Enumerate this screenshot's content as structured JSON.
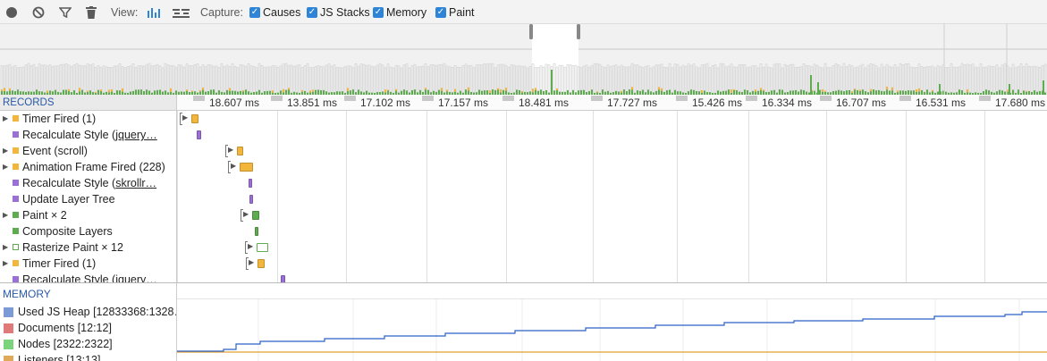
{
  "toolbar": {
    "view_label": "View:",
    "capture_label": "Capture:",
    "capture_options": [
      "Causes",
      "JS Stacks",
      "Memory",
      "Paint"
    ],
    "icons": [
      "record-icon",
      "clear-icon",
      "filter-icon",
      "trash-icon",
      "bars-view-icon",
      "flame-view-icon"
    ]
  },
  "records_header": "RECORDS",
  "ticks": [
    "18.607 ms",
    "13.851 ms",
    "17.102 ms",
    "17.157 ms",
    "18.481 ms",
    "17.727 ms",
    "15.426 ms",
    "16.334 ms",
    "16.707 ms",
    "16.531 ms",
    "17.680 ms"
  ],
  "records": [
    {
      "label": "Timer Fired (1)",
      "link": "",
      "tail": "",
      "expandable": true,
      "color": "#f3b63c"
    },
    {
      "label": "Recalculate Style (",
      "link": "jquery…",
      "tail": "",
      "expandable": false,
      "color": "#9b6fd6"
    },
    {
      "label": "Event (scroll)",
      "link": "",
      "tail": "",
      "expandable": true,
      "color": "#f3b63c"
    },
    {
      "label": "Animation Frame Fired (228)",
      "link": "",
      "tail": "",
      "expandable": true,
      "color": "#f3b63c"
    },
    {
      "label": "Recalculate Style (",
      "link": "skrollr…",
      "tail": "",
      "expandable": false,
      "color": "#9b6fd6"
    },
    {
      "label": "Update Layer Tree",
      "link": "",
      "tail": "",
      "expandable": false,
      "color": "#9b6fd6"
    },
    {
      "label": "Paint × 2",
      "link": "",
      "tail": "",
      "expandable": true,
      "color": "#5fab4f"
    },
    {
      "label": "Composite Layers",
      "link": "",
      "tail": "",
      "expandable": false,
      "color": "#5fab4f"
    },
    {
      "label": "Rasterize Paint × 12",
      "link": "",
      "tail": "",
      "expandable": true,
      "color": "outline-green"
    },
    {
      "label": "Timer Fired (1)",
      "link": "",
      "tail": "",
      "expandable": true,
      "color": "#f3b63c"
    },
    {
      "label": "Recalculate Style (",
      "link": "jquery…",
      "tail": "",
      "expandable": false,
      "color": "#9b6fd6"
    }
  ],
  "memory": {
    "header": "MEMORY",
    "legend": [
      {
        "label": "Used JS Heap [12833368:1328…",
        "color": "#7c9ad6"
      },
      {
        "label": "Documents [12:12]",
        "color": "#e07a7a"
      },
      {
        "label": "Nodes [2322:2322]",
        "color": "#7bd47b"
      },
      {
        "label": "Listeners [13:13]",
        "color": "#e0a95a"
      }
    ]
  },
  "colors": {
    "scripting": "#f3b63c",
    "rendering": "#9b6fd6",
    "painting": "#5fab4f",
    "heap_line": "#2a62c8",
    "listeners_line": "#e0a030",
    "accent": "#2e85d8"
  }
}
